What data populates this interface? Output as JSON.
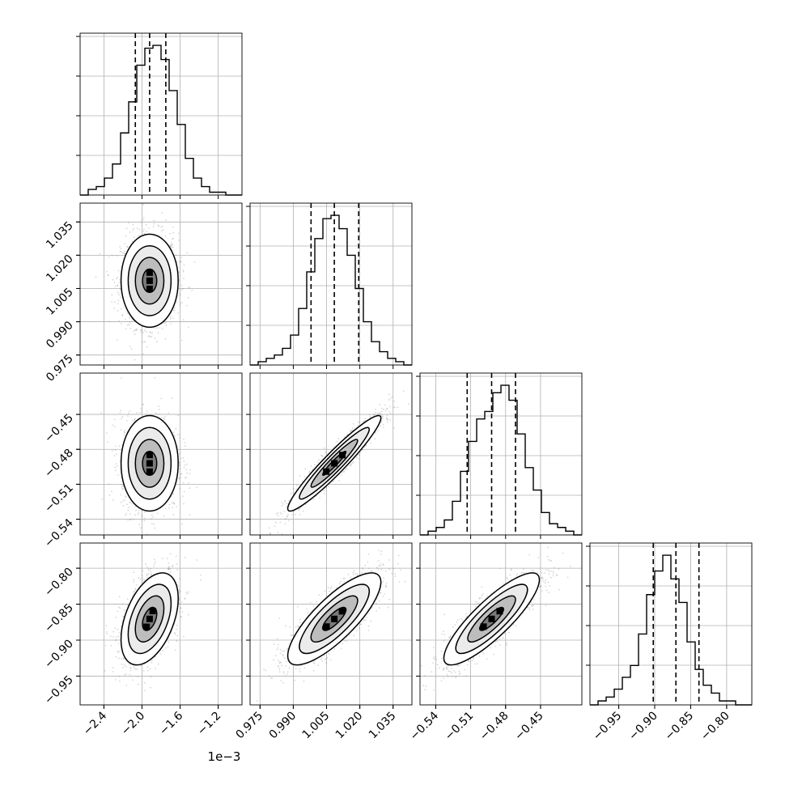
{
  "chart_data": {
    "type": "corner",
    "multiplier_label": "1e−3",
    "colors": {
      "line": "#000000",
      "grid": "#b0b0b0",
      "scatter": "#8c8c8c",
      "fill_dark": "#000000",
      "fill_light": "#ffffff"
    },
    "grid": true,
    "params": [
      {
        "range": [
          -2.65,
          -0.95
        ],
        "ticks": [
          -2.4,
          -2.0,
          -1.6,
          -1.2
        ],
        "tick_labels": [
          "−2.4",
          "−2.0",
          "−1.6",
          "−1.2"
        ],
        "mean": -1.92,
        "sd": 0.15
      },
      {
        "range": [
          0.9705,
          1.0435
        ],
        "ticks": [
          0.975,
          0.99,
          1.005,
          1.02,
          1.035
        ],
        "tick_labels": [
          "0.975",
          "0.990",
          "1.005",
          "1.020",
          "1.035"
        ],
        "mean": 1.0085,
        "sd": 0.0105
      },
      {
        "range": [
          -0.5535,
          -0.4145
        ],
        "ticks": [
          -0.54,
          -0.51,
          -0.48,
          -0.45
        ],
        "tick_labels": [
          "−0.54",
          "−0.51",
          "−0.48",
          "−0.45"
        ],
        "mean": -0.492,
        "sd": 0.0205
      },
      {
        "range": [
          -0.99,
          -0.765
        ],
        "ticks": [
          -0.95,
          -0.9,
          -0.85,
          -0.8
        ],
        "tick_labels": [
          "−0.95",
          "−0.90",
          "−0.85",
          "−0.80"
        ],
        "mean": -0.8705,
        "sd": 0.032
      }
    ],
    "quantile_lines": [
      [
        -2.07,
        -1.92,
        -1.75
      ],
      [
        0.998,
        1.0085,
        1.0195
      ],
      [
        -0.513,
        -0.492,
        -0.4715
      ],
      [
        -0.902,
        -0.8705,
        -0.8385
      ]
    ],
    "histograms": [
      {
        "edges_start": -2.65,
        "bin_width": 0.085,
        "counts": [
          0,
          2,
          3,
          6,
          11,
          22,
          33,
          46,
          52,
          53,
          48,
          37,
          25,
          13,
          6,
          3,
          1,
          1,
          0,
          0
        ]
      },
      {
        "edges_start": 0.9705,
        "bin_width": 0.00365,
        "counts": [
          0,
          1,
          2,
          3,
          5,
          9,
          17,
          28,
          38,
          44,
          45,
          41,
          33,
          23,
          13,
          7,
          4,
          2,
          1,
          0
        ]
      },
      {
        "edges_start": -0.5535,
        "bin_width": 0.00695,
        "counts": [
          0,
          1,
          2,
          4,
          9,
          17,
          25,
          31,
          33,
          38,
          40,
          36,
          27,
          18,
          12,
          6,
          3,
          2,
          1,
          0
        ]
      },
      {
        "edges_start": -0.99,
        "bin_width": 0.01125,
        "counts": [
          0,
          1,
          2,
          4,
          7,
          10,
          18,
          28,
          34,
          38,
          32,
          26,
          16,
          9,
          5,
          3,
          1,
          1,
          0,
          0
        ]
      }
    ],
    "correlations": [
      {
        "i": 1,
        "j": 0,
        "rho": 0.0
      },
      {
        "i": 2,
        "j": 0,
        "rho": 0.0
      },
      {
        "i": 2,
        "j": 1,
        "rho": 0.95
      },
      {
        "i": 3,
        "j": 0,
        "rho": 0.45
      },
      {
        "i": 3,
        "j": 1,
        "rho": 0.8
      },
      {
        "i": 3,
        "j": 2,
        "rho": 0.85
      }
    ]
  }
}
